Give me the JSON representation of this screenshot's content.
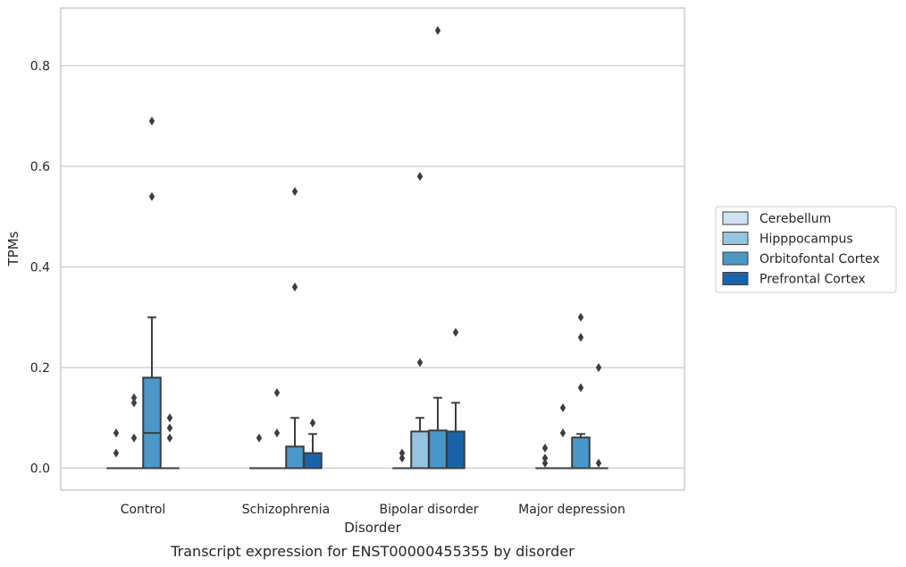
{
  "chart_data": {
    "type": "box",
    "caption": "Transcript expression for ENST00000455355 by disorder",
    "xlabel": "Disorder",
    "ylabel": "TPMs",
    "ylim": [
      -0.043,
      0.915
    ],
    "yticks": [
      0.0,
      0.2,
      0.4,
      0.6,
      0.8
    ],
    "ytick_labels": [
      "0.0",
      "0.2",
      "0.4",
      "0.6",
      "0.8"
    ],
    "grid": true,
    "legend_placement": "right",
    "categories": [
      "Control",
      "Schizophrenia",
      "Bipolar disorder",
      "Major depression"
    ],
    "series": [
      {
        "name": "Cerebellum",
        "color": "#d0e1f2",
        "boxes": [
          {
            "q1": 0,
            "median": 0,
            "q3": 0,
            "whislo": 0,
            "whishi": 0,
            "fliers": [
              0.03,
              0.07
            ]
          },
          {
            "q1": 0,
            "median": 0,
            "q3": 0,
            "whislo": 0,
            "whishi": 0,
            "fliers": [
              0.06
            ]
          },
          {
            "q1": 0,
            "median": 0,
            "q3": 0,
            "whislo": 0,
            "whishi": 0,
            "fliers": [
              0.02,
              0.03
            ]
          },
          {
            "q1": 0,
            "median": 0,
            "q3": 0,
            "whislo": 0,
            "whishi": 0,
            "fliers": [
              0.01,
              0.02,
              0.04
            ]
          }
        ]
      },
      {
        "name": "Hipppocampus",
        "color": "#94c4df",
        "boxes": [
          {
            "q1": 0,
            "median": 0,
            "q3": 0,
            "whislo": 0,
            "whishi": 0,
            "fliers": [
              0.06,
              0.13,
              0.14
            ]
          },
          {
            "q1": 0,
            "median": 0,
            "q3": 0,
            "whislo": 0,
            "whishi": 0,
            "fliers": [
              0.07,
              0.15
            ]
          },
          {
            "q1": 0,
            "median": 0,
            "q3": 0.073,
            "whislo": 0,
            "whishi": 0.1,
            "fliers": [
              0.21,
              0.58
            ]
          },
          {
            "q1": 0,
            "median": 0,
            "q3": 0,
            "whislo": 0,
            "whishi": 0,
            "fliers": [
              0.07,
              0.12
            ]
          }
        ]
      },
      {
        "name": "Orbitofontal Cortex",
        "color": "#4a98c9",
        "boxes": [
          {
            "q1": 0,
            "median": 0.07,
            "q3": 0.18,
            "whislo": 0,
            "whishi": 0.3,
            "fliers": [
              0.54,
              0.69
            ]
          },
          {
            "q1": 0,
            "median": 0,
            "q3": 0.043,
            "whislo": 0,
            "whishi": 0.1,
            "fliers": [
              0.36,
              0.55
            ]
          },
          {
            "q1": 0,
            "median": 0,
            "q3": 0.075,
            "whislo": 0,
            "whishi": 0.14,
            "fliers": [
              0.87
            ]
          },
          {
            "q1": 0,
            "median": 0,
            "q3": 0.061,
            "whislo": 0,
            "whishi": 0.068,
            "fliers": [
              0.16,
              0.26,
              0.3
            ]
          }
        ]
      },
      {
        "name": "Prefrontal Cortex",
        "color": "#1764ab",
        "boxes": [
          {
            "q1": 0,
            "median": 0,
            "q3": 0,
            "whislo": 0,
            "whishi": 0,
            "fliers": [
              0.06,
              0.08,
              0.1
            ]
          },
          {
            "q1": 0,
            "median": 0,
            "q3": 0.03,
            "whislo": 0,
            "whishi": 0.068,
            "fliers": [
              0.09
            ]
          },
          {
            "q1": 0,
            "median": 0,
            "q3": 0.073,
            "whislo": 0,
            "whishi": 0.13,
            "fliers": [
              0.27
            ]
          },
          {
            "q1": 0,
            "median": 0,
            "q3": 0,
            "whislo": 0,
            "whishi": 0,
            "fliers": [
              0.01,
              0.2
            ]
          }
        ]
      }
    ]
  }
}
